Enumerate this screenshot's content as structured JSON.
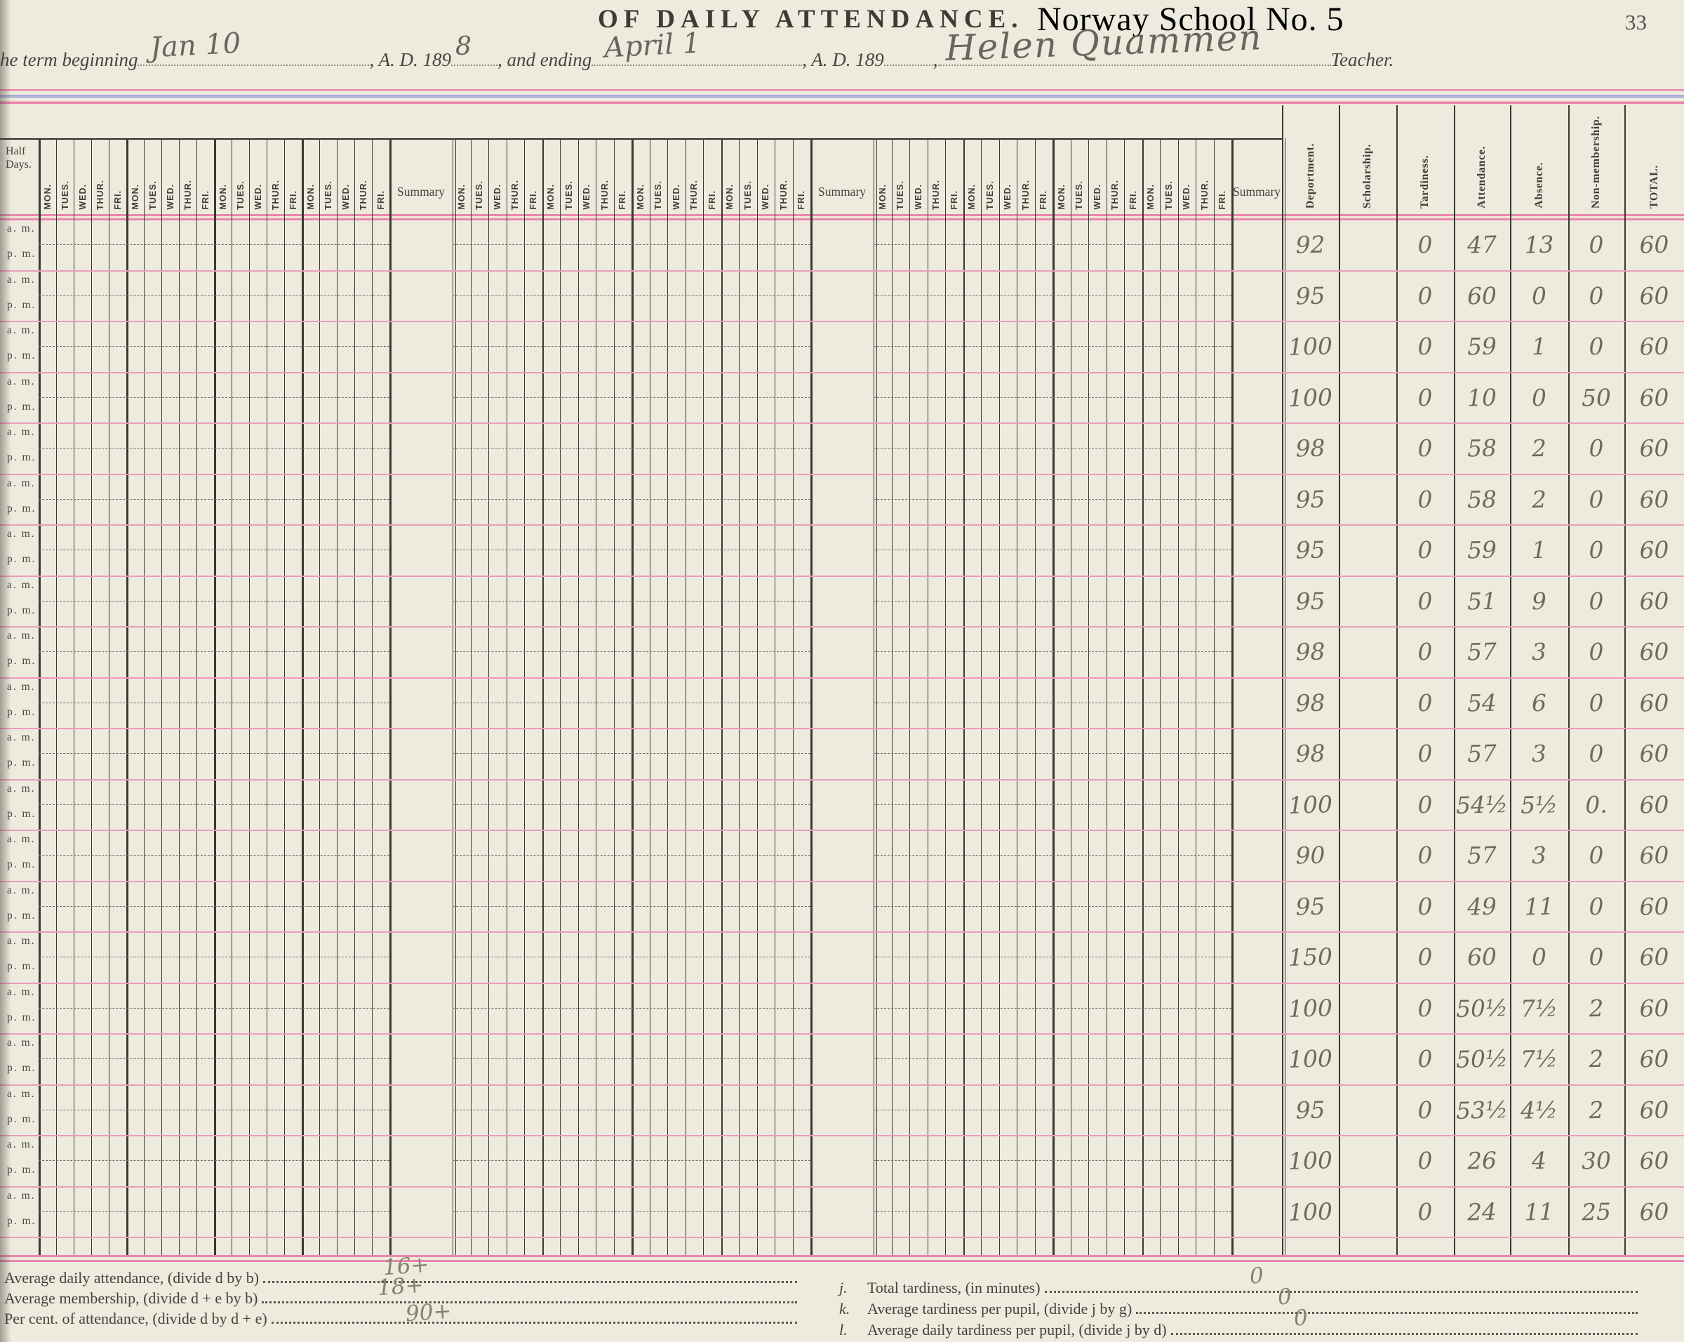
{
  "header": {
    "title": "OF  DAILY  ATTENDANCE.",
    "school_name": "Norway School No. 5",
    "page_number": "33",
    "term_line": {
      "beginning_label": "he term beginning",
      "beginning_date": "Jan 10",
      "ad_label_1": ", A. D. 189",
      "ad_value_1": "8",
      "ending_label": ", and ending",
      "ending_date": "April 1",
      "ad_label_2": ", A. D. 189",
      "separator": ",",
      "teacher_name": "Helen Quammen",
      "teacher_label": "Teacher."
    }
  },
  "grid": {
    "row_label_header": "Half Days.",
    "am_label": "a. m.",
    "pm_label": "p. m.",
    "day_labels": [
      "MON.",
      "TUES.",
      "WED.",
      "THUR.",
      "FRI."
    ],
    "weeks_per_group": 4,
    "num_groups": 3,
    "summary_label": "Summary",
    "num_day_pairs": 20
  },
  "right_columns": {
    "headers": [
      "Deportment.",
      "Scholarship.",
      "Tardiness.",
      "Attendance.",
      "Absence.",
      "Non-membership.",
      "TOTAL."
    ],
    "rows": [
      [
        "92",
        "",
        "0",
        "47",
        "13",
        "0",
        "60"
      ],
      [
        "95",
        "",
        "0",
        "60",
        "0",
        "0",
        "60"
      ],
      [
        "100",
        "",
        "0",
        "59",
        "1",
        "0",
        "60"
      ],
      [
        "100",
        "",
        "0",
        "10",
        "0",
        "50",
        "60"
      ],
      [
        "98",
        "",
        "0",
        "58",
        "2",
        "0",
        "60"
      ],
      [
        "95",
        "",
        "0",
        "58",
        "2",
        "0",
        "60"
      ],
      [
        "95",
        "",
        "0",
        "59",
        "1",
        "0",
        "60"
      ],
      [
        "95",
        "",
        "0",
        "51",
        "9",
        "0",
        "60"
      ],
      [
        "98",
        "",
        "0",
        "57",
        "3",
        "0",
        "60"
      ],
      [
        "98",
        "",
        "0",
        "54",
        "6",
        "0",
        "60"
      ],
      [
        "98",
        "",
        "0",
        "57",
        "3",
        "0",
        "60"
      ],
      [
        "100",
        "",
        "0",
        "54½",
        "5½",
        "0.",
        "60"
      ],
      [
        "90",
        "",
        "0",
        "57",
        "3",
        "0",
        "60"
      ],
      [
        "95",
        "",
        "0",
        "49",
        "11",
        "0",
        "60"
      ],
      [
        "150",
        "",
        "0",
        "60",
        "0",
        "0",
        "60"
      ],
      [
        "100",
        "",
        "0",
        "50½",
        "7½",
        "2",
        "60"
      ],
      [
        "100",
        "",
        "0",
        "50½",
        "7½",
        "2",
        "60"
      ],
      [
        "95",
        "",
        "0",
        "53½",
        "4½",
        "2",
        "60"
      ],
      [
        "100",
        "",
        "0",
        "26",
        "4",
        "30",
        "60"
      ],
      [
        "100",
        "",
        "0",
        "24",
        "11",
        "25",
        "60"
      ]
    ]
  },
  "footer": {
    "left_items": [
      {
        "label": "Average daily attendance, (divide d by b)",
        "value": "16+"
      },
      {
        "label": "Average membership, (divide d + e by b)",
        "value": "18+"
      },
      {
        "label": "Per cent. of attendance, (divide d by d + e)",
        "value": "90+"
      }
    ],
    "right_items": [
      {
        "prefix": "j.",
        "label": "Total tardiness, (in minutes)",
        "value": "0"
      },
      {
        "prefix": "k.",
        "label": "Average tardiness per pupil, (divide j by g)",
        "value": "0"
      },
      {
        "prefix": "l.",
        "label": "Average daily tardiness per pupil, (divide j by d)",
        "value": "0"
      }
    ]
  },
  "colors": {
    "paper": "#edeade",
    "pink_rule": "#ec86ab",
    "blue_rule": "#98a0d4",
    "grid_line": "#3a3831",
    "pencil": "#6d6a5e",
    "print": "#45433b"
  }
}
